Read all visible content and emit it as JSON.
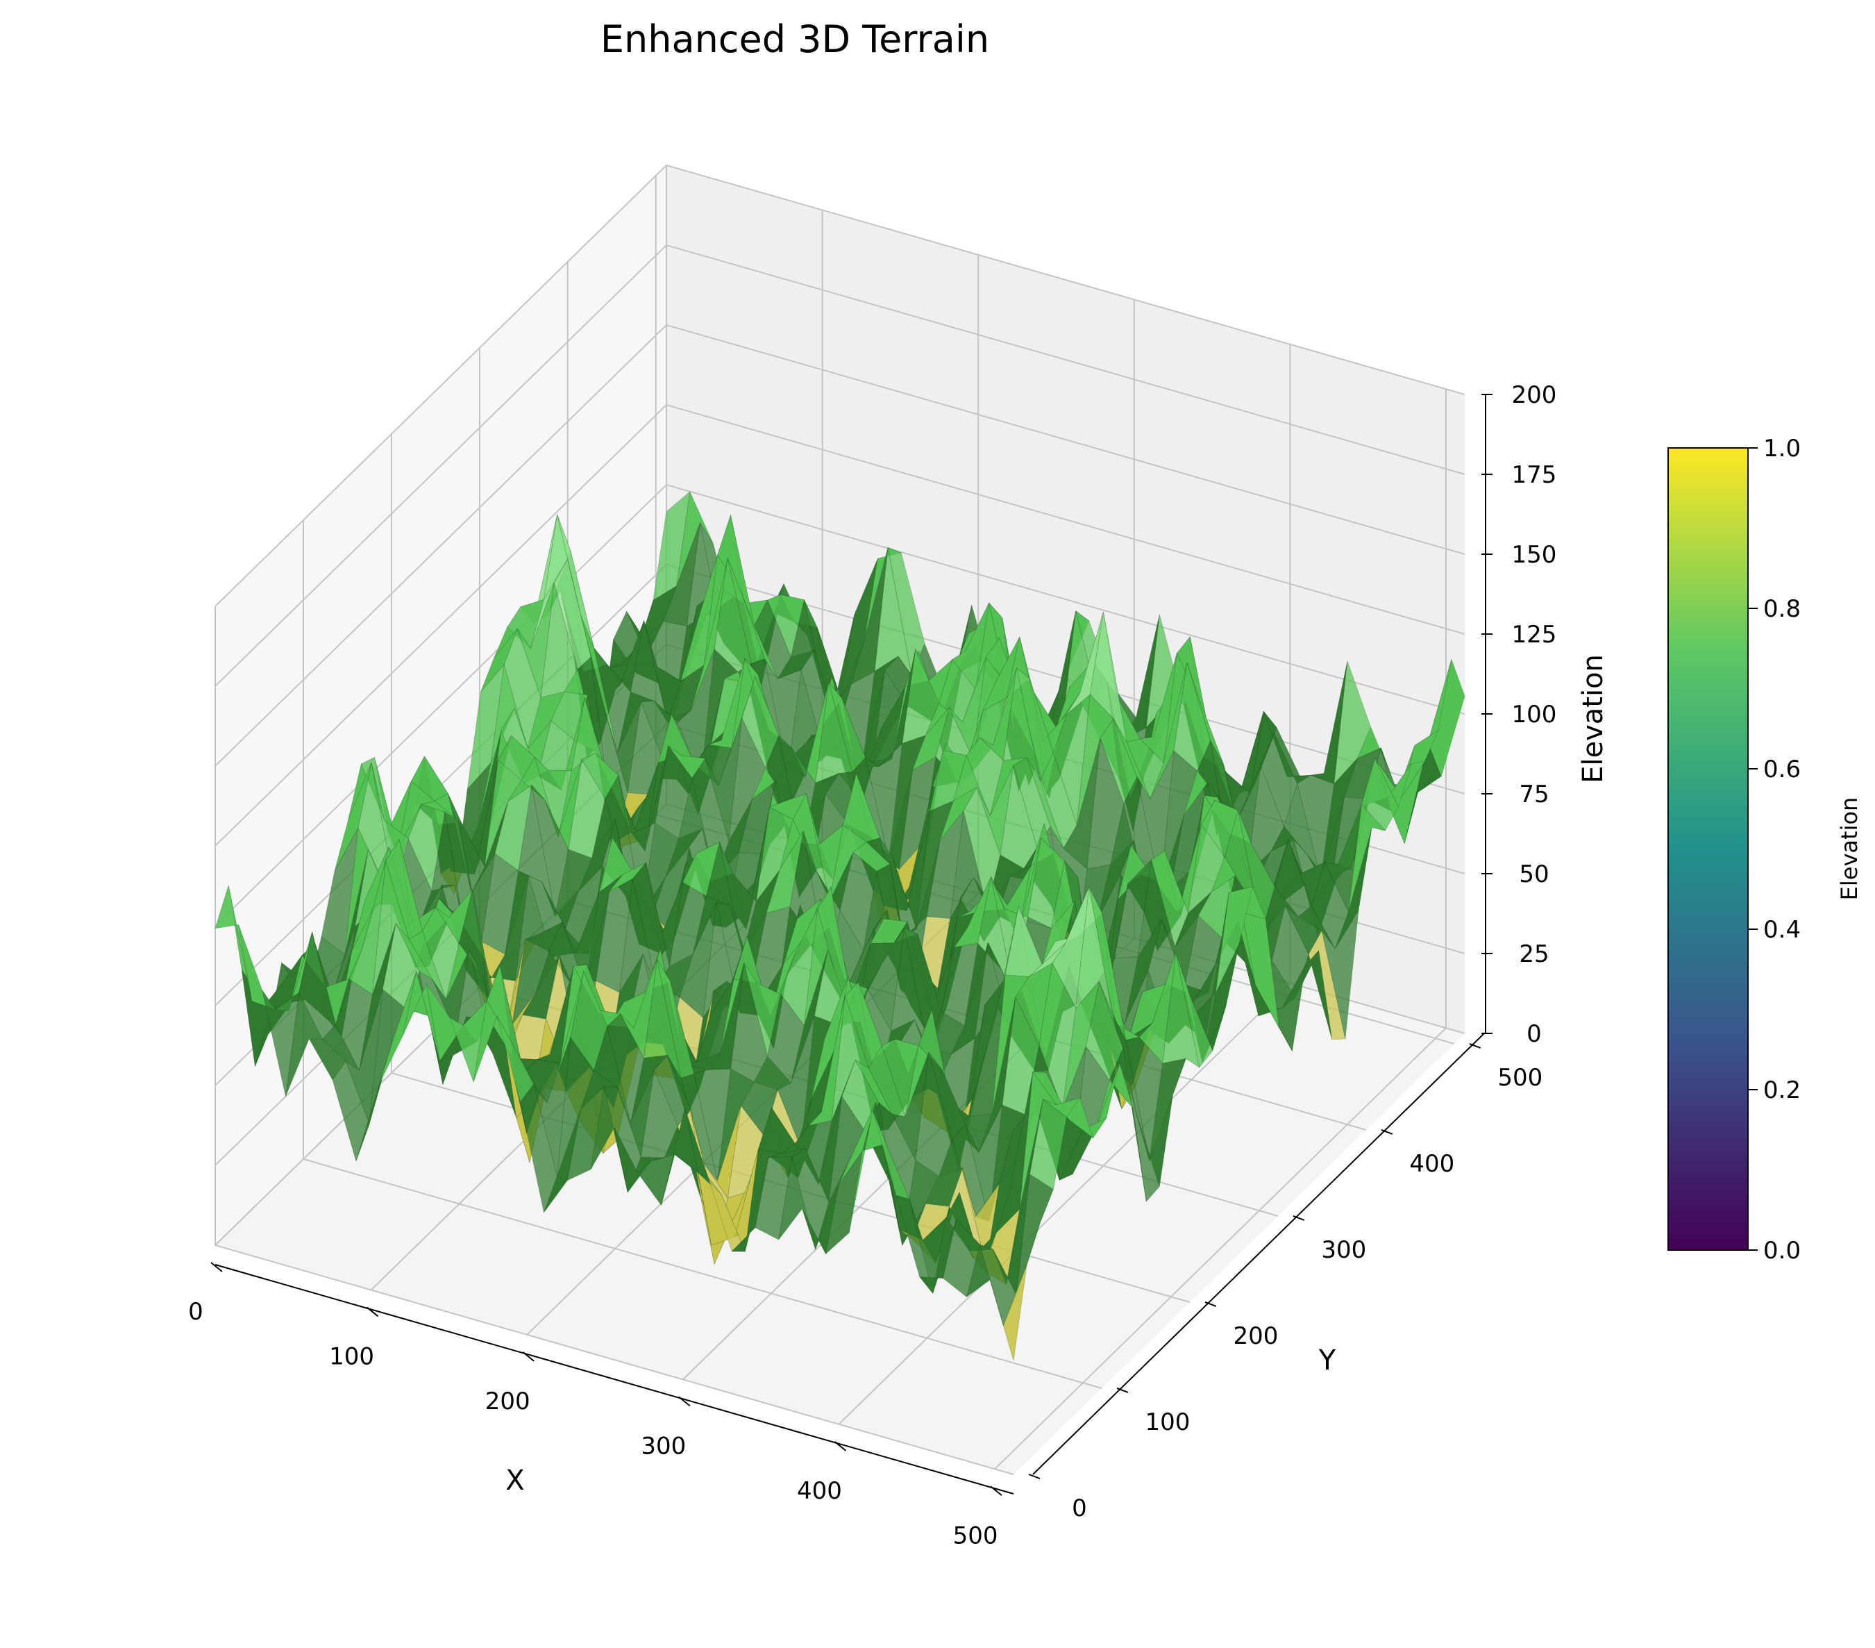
{
  "chart_data": {
    "type": "surface",
    "title": "Enhanced 3D Terrain",
    "xlabel": "X",
    "ylabel": "Y",
    "zlabel": "Elevation",
    "xlim": [
      0,
      512
    ],
    "ylim": [
      0,
      512
    ],
    "zlim": [
      0,
      200
    ],
    "x_ticks": [
      0,
      100,
      200,
      300,
      400,
      500
    ],
    "y_ticks": [
      0,
      100,
      200,
      300,
      400,
      500
    ],
    "z_ticks": [
      0,
      25,
      50,
      75,
      100,
      125,
      150,
      175,
      200
    ],
    "grid": true,
    "colorbar": {
      "label": "Elevation",
      "range": [
        0.0,
        1.0
      ],
      "ticks": [
        "0.0",
        "0.2",
        "0.4",
        "0.6",
        "0.8",
        "1.0"
      ],
      "colormap": "viridis",
      "stops": [
        "#440154",
        "#3b528b",
        "#21918c",
        "#5ec962",
        "#fde725"
      ]
    },
    "terrain_colors": {
      "water": "#3a8fd0",
      "sand": "#c8c44a",
      "grass_dark": "#2f7a2f",
      "grass": "#52c252",
      "grass_light": "#8ee08e",
      "rock": "#9a7a5a",
      "peak": "#c9a58a"
    },
    "elevation_stats": {
      "approx_min": 0,
      "approx_max": 190,
      "typical_range": [
        40,
        120
      ]
    }
  }
}
